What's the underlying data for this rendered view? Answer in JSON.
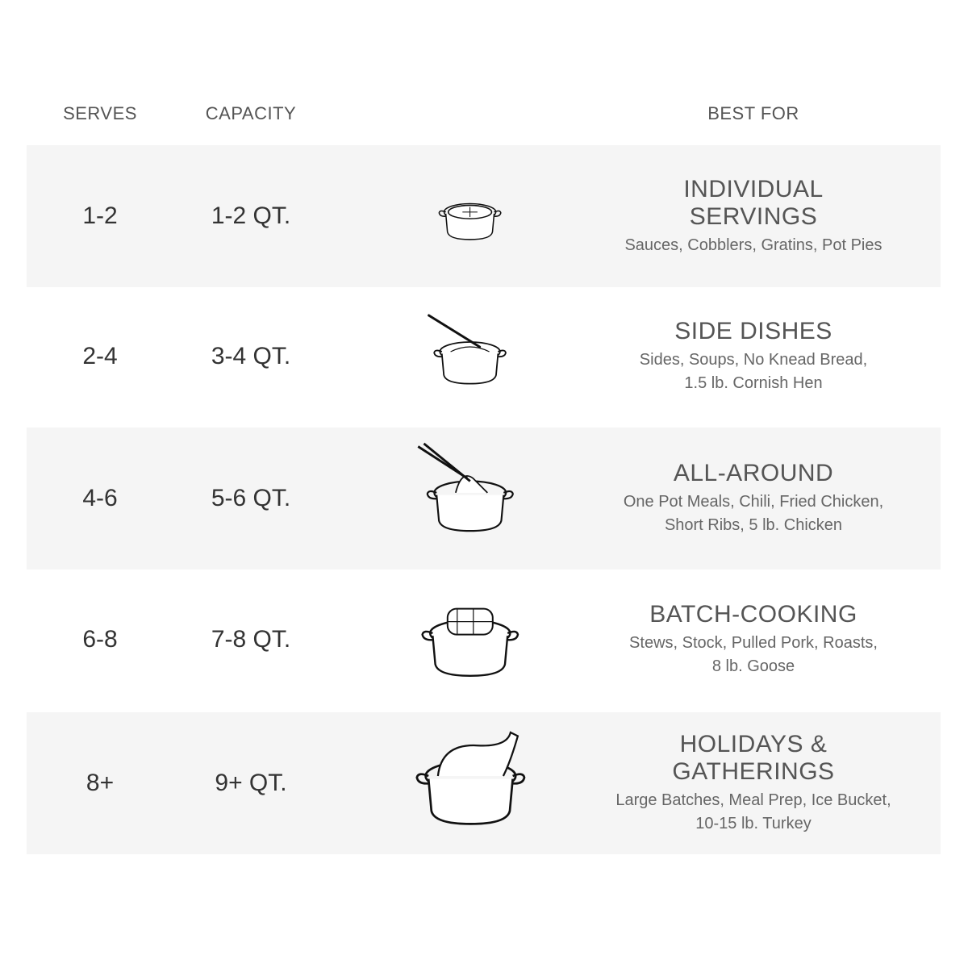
{
  "headers": {
    "serves": "SERVES",
    "capacity": "CAPACITY",
    "best_for": "BEST FOR"
  },
  "colors": {
    "row_shade": "#f5f5f5",
    "text": "#555555",
    "ink": "#111111"
  },
  "rows": [
    {
      "serves": "1-2",
      "capacity": "1-2 QT.",
      "title": "INDIVIDUAL\nSERVINGS",
      "desc": "Sauces, Cobblers, Gratins, Pot Pies",
      "icon": "pot-pie-icon",
      "shaded": true
    },
    {
      "serves": "2-4",
      "capacity": "3-4 QT.",
      "title": "SIDE DISHES",
      "desc": "Sides, Soups, No Knead Bread,\n1.5 lb. Cornish Hen",
      "icon": "pot-with-pasta-and-spoon-icon",
      "shaded": false
    },
    {
      "serves": "4-6",
      "capacity": "5-6 QT.",
      "title": "ALL-AROUND",
      "desc": "One Pot Meals, Chili, Fried Chicken,\nShort Ribs, 5 lb. Chicken",
      "icon": "pot-with-chicken-and-tongs-icon",
      "shaded": true
    },
    {
      "serves": "6-8",
      "capacity": "7-8 QT.",
      "title": "BATCH-COOKING",
      "desc": "Stews, Stock, Pulled Pork, Roasts,\n8 lb. Goose",
      "icon": "pot-with-roast-icon",
      "shaded": false
    },
    {
      "serves": "8+",
      "capacity": "9+ QT.",
      "title": "HOLIDAYS &\nGATHERINGS",
      "desc": "Large Batches, Meal Prep, Ice Bucket,\n10-15 lb. Turkey",
      "icon": "pot-with-turkey-icon",
      "shaded": true
    }
  ]
}
